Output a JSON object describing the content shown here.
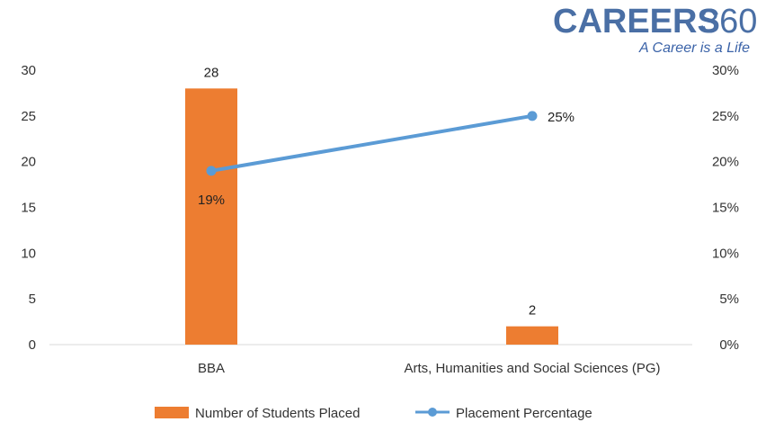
{
  "brand": {
    "name": "CAREERS",
    "number": "360",
    "tagline": "A Career is a Life"
  },
  "chart_data": {
    "type": "bar",
    "title": "",
    "xlabel": "",
    "ylabel": "",
    "categories": [
      "BBA",
      "Arts, Humanities and Social Sciences (PG)"
    ],
    "series": [
      {
        "name": "Number of Students Placed",
        "type": "bar",
        "axis": "left",
        "color": "#ED7D31",
        "values": [
          28,
          2
        ],
        "labels": [
          "28",
          "2"
        ]
      },
      {
        "name": "Placement Percentage",
        "type": "line",
        "axis": "right",
        "color": "#5B9BD5",
        "values": [
          19,
          25
        ],
        "labels": [
          "19%",
          "25%"
        ]
      }
    ],
    "ylim": [
      0,
      30
    ],
    "yticks": [
      "0",
      "5",
      "10",
      "15",
      "20",
      "25",
      "30"
    ],
    "y2lim": [
      0,
      30
    ],
    "y2ticks": [
      "0%",
      "5%",
      "10%",
      "15%",
      "20%",
      "25%",
      "30%"
    ],
    "grid": false,
    "legend": "bottom"
  }
}
